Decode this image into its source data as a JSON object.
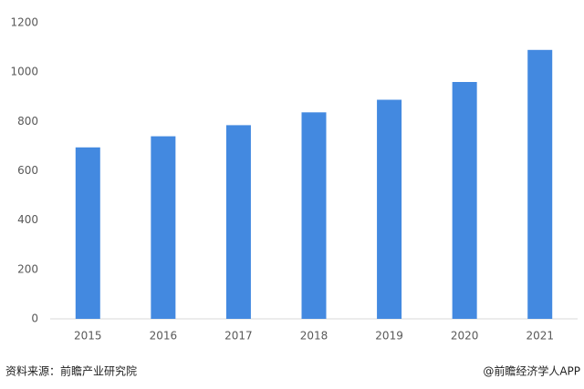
{
  "chart_data": {
    "type": "bar",
    "categories": [
      "2015",
      "2016",
      "2017",
      "2018",
      "2019",
      "2020",
      "2021"
    ],
    "values": [
      695,
      740,
      785,
      837,
      888,
      960,
      1090
    ],
    "color": "#4389e0",
    "ylim": [
      0,
      1200
    ],
    "yticks": [
      0,
      200,
      400,
      600,
      800,
      1000,
      1200
    ],
    "grid": false
  },
  "footer": {
    "source": "资料来源：前瞻产业研究院",
    "credit": "@前瞻经济学人APP"
  }
}
